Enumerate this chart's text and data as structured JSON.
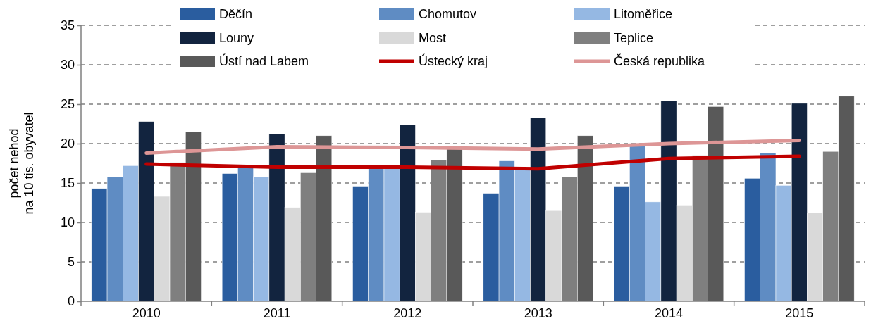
{
  "chart_data": {
    "type": "bar",
    "ylabel": "počet nehod\nna 10 tis. obyvatel",
    "categories": [
      "2010",
      "2011",
      "2012",
      "2013",
      "2014",
      "2015"
    ],
    "series": [
      {
        "name": "Děčín",
        "color": "#2a5d9f",
        "values": [
          14.3,
          16.2,
          14.6,
          13.7,
          14.6,
          15.6
        ]
      },
      {
        "name": "Chomutov",
        "color": "#5f8cc3",
        "values": [
          15.8,
          17.0,
          17.0,
          17.8,
          19.7,
          18.8
        ]
      },
      {
        "name": "Litoměřice",
        "color": "#95b8e3",
        "values": [
          17.2,
          15.8,
          17.0,
          16.9,
          12.6,
          14.7
        ]
      },
      {
        "name": "Louny",
        "color": "#12243f",
        "values": [
          22.8,
          21.2,
          22.4,
          23.3,
          25.4,
          25.1
        ]
      },
      {
        "name": "Most",
        "color": "#d9d9d9",
        "values": [
          13.3,
          11.9,
          11.3,
          11.5,
          12.2,
          11.2
        ]
      },
      {
        "name": "Teplice",
        "color": "#7f7f7f",
        "values": [
          17.6,
          16.3,
          17.9,
          15.8,
          18.5,
          19.0
        ]
      },
      {
        "name": "Ústí nad Labem",
        "color": "#595959",
        "values": [
          21.5,
          21.0,
          19.3,
          21.0,
          24.7,
          26.0
        ]
      },
      {
        "name": "Ústecký kraj",
        "type": "line",
        "color": "#c00000",
        "values": [
          17.4,
          17.0,
          17.0,
          16.8,
          18.1,
          18.4
        ]
      },
      {
        "name": "Česká republika",
        "type": "line",
        "color": "#dd9696",
        "values": [
          18.8,
          19.6,
          19.5,
          19.3,
          20.0,
          20.4
        ]
      }
    ],
    "ylim": [
      0,
      35
    ],
    "yticks": [
      0,
      5,
      10,
      15,
      20,
      25,
      30,
      35
    ],
    "grid": "y",
    "legend": "top",
    "line_style": "solid",
    "marker": "none"
  }
}
